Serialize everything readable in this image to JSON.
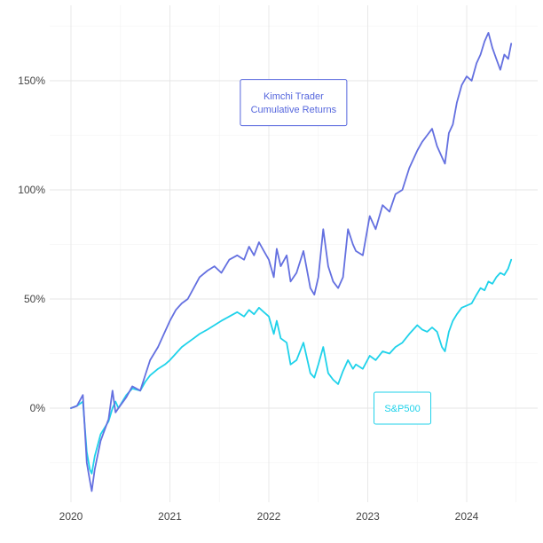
{
  "chart_data": {
    "type": "line",
    "title": "",
    "xlabel": "",
    "ylabel": "",
    "grid": true,
    "legend": "none",
    "x_ticks": [
      {
        "value": 2020.0,
        "label": "2020"
      },
      {
        "value": 2021.0,
        "label": "2021"
      },
      {
        "value": 2022.0,
        "label": "2022"
      },
      {
        "value": 2023.0,
        "label": "2023"
      },
      {
        "value": 2024.0,
        "label": "2024"
      }
    ],
    "y_ticks": [
      {
        "value": 0,
        "label": "0%"
      },
      {
        "value": 50,
        "label": "50%"
      },
      {
        "value": 100,
        "label": "100%"
      },
      {
        "value": 150,
        "label": "150%"
      }
    ],
    "xlim": [
      2019.9,
      2024.75
    ],
    "ylim": [
      -45,
      180
    ],
    "series": [
      {
        "name": "Kimchi Trader Cumulative Returns",
        "color": "#6470e0",
        "x": [
          2020.0,
          2020.06,
          2020.12,
          2020.16,
          2020.19,
          2020.21,
          2020.24,
          2020.3,
          2020.38,
          2020.42,
          2020.45,
          2020.48,
          2020.56,
          2020.62,
          2020.7,
          2020.75,
          2020.8,
          2020.88,
          2020.95,
          2021.0,
          2021.06,
          2021.12,
          2021.18,
          2021.24,
          2021.3,
          2021.38,
          2021.45,
          2021.52,
          2021.6,
          2021.68,
          2021.75,
          2021.8,
          2021.85,
          2021.9,
          2021.95,
          2022.0,
          2022.05,
          2022.08,
          2022.12,
          2022.18,
          2022.22,
          2022.28,
          2022.35,
          2022.42,
          2022.46,
          2022.5,
          2022.55,
          2022.6,
          2022.65,
          2022.7,
          2022.75,
          2022.8,
          2022.85,
          2022.88,
          2022.95,
          2023.02,
          2023.08,
          2023.15,
          2023.22,
          2023.28,
          2023.35,
          2023.42,
          2023.5,
          2023.55,
          2023.6,
          2023.65,
          2023.7,
          2023.75,
          2023.78,
          2023.82,
          2023.86,
          2023.9,
          2023.95,
          2024.0,
          2024.05,
          2024.1,
          2024.14,
          2024.18,
          2024.22,
          2024.26,
          2024.3,
          2024.34,
          2024.38,
          2024.42,
          2024.45
        ],
        "values": [
          0,
          1,
          6,
          -25,
          -33,
          -38,
          -28,
          -15,
          -5,
          8,
          -2,
          0,
          5,
          10,
          8,
          15,
          22,
          28,
          35,
          40,
          45,
          48,
          50,
          55,
          60,
          63,
          65,
          62,
          68,
          70,
          68,
          74,
          70,
          76,
          72,
          68,
          60,
          73,
          65,
          70,
          58,
          62,
          72,
          55,
          52,
          60,
          82,
          65,
          58,
          55,
          60,
          82,
          75,
          72,
          70,
          88,
          82,
          93,
          90,
          98,
          100,
          110,
          118,
          122,
          125,
          128,
          120,
          115,
          112,
          126,
          130,
          140,
          148,
          152,
          150,
          158,
          162,
          168,
          172,
          165,
          160,
          155,
          162,
          160,
          167
        ]
      },
      {
        "name": "S&P500",
        "color": "#1fd2ea",
        "x": [
          2020.0,
          2020.06,
          2020.12,
          2020.16,
          2020.19,
          2020.21,
          2020.24,
          2020.3,
          2020.38,
          2020.42,
          2020.45,
          2020.48,
          2020.56,
          2020.62,
          2020.7,
          2020.75,
          2020.8,
          2020.88,
          2020.95,
          2021.0,
          2021.06,
          2021.12,
          2021.18,
          2021.24,
          2021.3,
          2021.38,
          2021.45,
          2021.52,
          2021.6,
          2021.68,
          2021.75,
          2021.8,
          2021.85,
          2021.9,
          2021.95,
          2022.0,
          2022.05,
          2022.08,
          2022.12,
          2022.18,
          2022.22,
          2022.28,
          2022.35,
          2022.42,
          2022.46,
          2022.5,
          2022.55,
          2022.6,
          2022.65,
          2022.7,
          2022.75,
          2022.8,
          2022.85,
          2022.88,
          2022.95,
          2023.02,
          2023.08,
          2023.15,
          2023.22,
          2023.28,
          2023.35,
          2023.42,
          2023.5,
          2023.55,
          2023.6,
          2023.65,
          2023.7,
          2023.75,
          2023.78,
          2023.82,
          2023.86,
          2023.9,
          2023.95,
          2024.0,
          2024.05,
          2024.1,
          2024.14,
          2024.18,
          2024.22,
          2024.26,
          2024.3,
          2024.34,
          2024.38,
          2024.42,
          2024.45
        ],
        "values": [
          0,
          1,
          3,
          -20,
          -28,
          -30,
          -22,
          -12,
          -6,
          0,
          3,
          0,
          6,
          9,
          8,
          12,
          15,
          18,
          20,
          22,
          25,
          28,
          30,
          32,
          34,
          36,
          38,
          40,
          42,
          44,
          42,
          45,
          43,
          46,
          44,
          42,
          34,
          40,
          32,
          30,
          20,
          22,
          30,
          16,
          14,
          20,
          28,
          16,
          13,
          11,
          17,
          22,
          18,
          20,
          18,
          24,
          22,
          26,
          25,
          28,
          30,
          34,
          38,
          36,
          35,
          37,
          35,
          28,
          26,
          35,
          40,
          43,
          46,
          47,
          48,
          52,
          55,
          54,
          58,
          57,
          60,
          62,
          61,
          64,
          68
        ]
      }
    ],
    "annotations": [
      {
        "series": 0,
        "lines": [
          "Kimchi Trader",
          "Cumulative Returns"
        ],
        "x": 2022.25,
        "y": 140,
        "color": "#5566dd"
      },
      {
        "series": 1,
        "lines": [
          "S&P500"
        ],
        "x": 2023.35,
        "y": 0,
        "color": "#1fd2ea"
      }
    ]
  }
}
